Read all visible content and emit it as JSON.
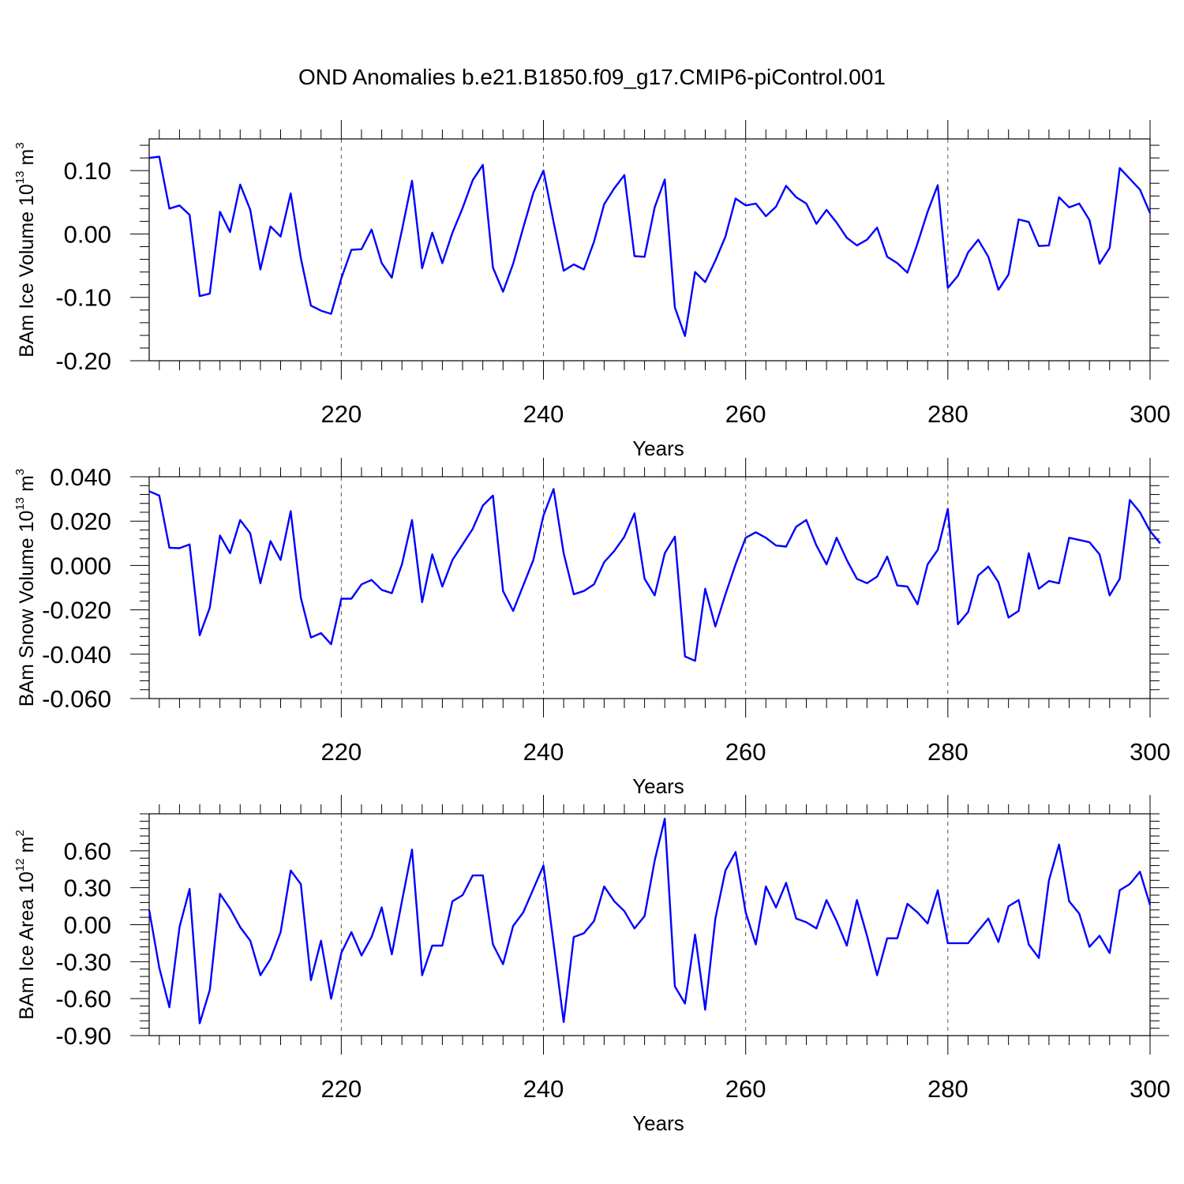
{
  "title": "OND Anomalies b.e21.B1850.f09_g17.CMIP6-piControl.001",
  "line_color": "#0000ff",
  "chart_data": [
    {
      "type": "line",
      "ylabel": "BAm Ice Volume 10",
      "ylabel_exp": "13",
      "ylabel_unit": " m",
      "ylabel_unit_exp": "3",
      "xlabel": "Years",
      "xlim": [
        201,
        300
      ],
      "ylim": [
        -0.2,
        0.15
      ],
      "yticks": [
        -0.2,
        -0.1,
        0.0,
        0.1
      ],
      "ytick_labels": [
        "-0.20",
        "-0.10",
        "0.00",
        "0.10"
      ],
      "xticks": [
        220,
        240,
        260,
        280,
        300
      ],
      "xtick_labels": [
        "220",
        "240",
        "260",
        "280",
        "300"
      ],
      "grid_x": [
        220,
        240,
        260,
        280
      ],
      "x_start": 201,
      "values": [
        0.12,
        0.122,
        0.04,
        0.045,
        0.03,
        -0.098,
        -0.094,
        0.035,
        0.003,
        0.078,
        0.038,
        -0.056,
        0.012,
        -0.004,
        0.064,
        -0.038,
        -0.113,
        -0.121,
        -0.126,
        -0.07,
        -0.025,
        -0.024,
        0.007,
        -0.046,
        -0.069,
        0.006,
        0.084,
        -0.054,
        0.002,
        -0.046,
        0.002,
        0.041,
        0.085,
        0.109,
        -0.053,
        -0.091,
        -0.047,
        0.01,
        0.065,
        0.1,
        0.019,
        -0.058,
        -0.048,
        -0.056,
        -0.012,
        0.047,
        0.072,
        0.093,
        -0.035,
        -0.036,
        0.042,
        0.086,
        -0.116,
        -0.161,
        -0.06,
        -0.076,
        -0.042,
        -0.004,
        0.056,
        0.045,
        0.048,
        0.028,
        0.043,
        0.076,
        0.058,
        0.048,
        0.016,
        0.038,
        0.018,
        -0.006,
        -0.018,
        -0.009,
        0.01,
        -0.036,
        -0.046,
        -0.061,
        -0.015,
        0.035,
        0.077,
        -0.085,
        -0.066,
        -0.029,
        -0.009,
        -0.036,
        -0.088,
        -0.064,
        0.023,
        0.019,
        -0.019,
        -0.018,
        0.058,
        0.042,
        0.048,
        0.022,
        -0.047,
        -0.022,
        0.104,
        0.087,
        0.07,
        0.033
      ]
    },
    {
      "type": "line",
      "ylabel": "BAm Snow Volume 10",
      "ylabel_exp": "13",
      "ylabel_unit": " m",
      "ylabel_unit_exp": "3",
      "xlabel": "Years",
      "xlim": [
        201,
        300
      ],
      "ylim": [
        -0.06,
        0.04
      ],
      "yticks": [
        -0.06,
        -0.04,
        -0.02,
        0.0,
        0.02,
        0.04
      ],
      "ytick_labels": [
        "-0.060",
        "-0.040",
        "-0.020",
        "0.000",
        "0.020",
        "0.040"
      ],
      "xticks": [
        220,
        240,
        260,
        280,
        300
      ],
      "xtick_labels": [
        "220",
        "240",
        "260",
        "280",
        "300"
      ],
      "grid_x": [
        220,
        240,
        260,
        280
      ],
      "x_start": 201,
      "values": [
        0.0335,
        0.0315,
        0.008,
        0.0078,
        0.0095,
        -0.0315,
        -0.019,
        0.0135,
        0.0055,
        0.0205,
        0.0145,
        -0.008,
        0.011,
        0.0025,
        0.0245,
        -0.0145,
        -0.0325,
        -0.0305,
        -0.0355,
        -0.015,
        -0.015,
        -0.0085,
        -0.0065,
        -0.011,
        -0.0125,
        0.0005,
        0.0205,
        -0.0165,
        0.005,
        -0.0095,
        0.0025,
        0.0095,
        0.0165,
        0.027,
        0.0315,
        -0.0115,
        -0.0205,
        -0.009,
        0.0025,
        0.0225,
        0.0345,
        0.0055,
        -0.013,
        -0.0115,
        -0.0085,
        0.0015,
        0.0065,
        0.013,
        0.0235,
        -0.006,
        -0.0135,
        0.0055,
        0.013,
        -0.041,
        -0.043,
        -0.0105,
        -0.0275,
        -0.013,
        0.0005,
        0.0125,
        0.015,
        0.0125,
        0.009,
        0.0085,
        0.0175,
        0.0205,
        0.009,
        0.0005,
        0.0125,
        0.0025,
        -0.006,
        -0.008,
        -0.005,
        0.004,
        -0.009,
        -0.0095,
        -0.0175,
        0.0005,
        0.007,
        0.0255,
        -0.0265,
        -0.021,
        -0.0045,
        -0.0005,
        -0.0075,
        -0.0235,
        -0.0205,
        0.0055,
        -0.0105,
        -0.007,
        -0.008,
        0.0125,
        0.0115,
        0.0105,
        0.005,
        -0.0135,
        -0.006,
        0.0295,
        0.024,
        0.0155,
        0.01
      ]
    },
    {
      "type": "line",
      "ylabel": "BAm Ice Area 10",
      "ylabel_exp": "12",
      "ylabel_unit": " m",
      "ylabel_unit_exp": "2",
      "xlabel": "Years",
      "xlim": [
        201,
        300
      ],
      "ylim": [
        -0.9,
        0.9
      ],
      "yticks": [
        -0.9,
        -0.6,
        -0.3,
        0.0,
        0.3,
        0.6
      ],
      "ytick_labels": [
        "-0.90",
        "-0.60",
        "-0.30",
        "0.00",
        "0.30",
        "0.60"
      ],
      "xticks": [
        220,
        240,
        260,
        280,
        300
      ],
      "xtick_labels": [
        "220",
        "240",
        "260",
        "280",
        "300"
      ],
      "grid_x": [
        220,
        240,
        260,
        280
      ],
      "x_start": 201,
      "values": [
        0.12,
        -0.35,
        -0.67,
        -0.02,
        0.29,
        -0.8,
        -0.53,
        0.25,
        0.13,
        -0.02,
        -0.13,
        -0.41,
        -0.28,
        -0.06,
        0.44,
        0.33,
        -0.45,
        -0.13,
        -0.6,
        -0.23,
        -0.06,
        -0.25,
        -0.1,
        0.14,
        -0.24,
        0.19,
        0.61,
        -0.41,
        -0.17,
        -0.17,
        0.19,
        0.24,
        0.4,
        0.4,
        -0.16,
        -0.32,
        -0.01,
        0.1,
        0.29,
        0.48,
        -0.15,
        -0.79,
        -0.1,
        -0.07,
        0.03,
        0.31,
        0.19,
        0.11,
        -0.03,
        0.07,
        0.52,
        0.86,
        -0.5,
        -0.64,
        -0.08,
        -0.69,
        0.05,
        0.44,
        0.59,
        0.1,
        -0.16,
        0.31,
        0.14,
        0.34,
        0.05,
        0.02,
        -0.03,
        0.2,
        0.03,
        -0.17,
        0.2,
        -0.09,
        -0.41,
        -0.11,
        -0.11,
        0.17,
        0.1,
        0.01,
        0.28,
        -0.15,
        -0.15,
        -0.15,
        -0.05,
        0.05,
        -0.14,
        0.15,
        0.2,
        -0.16,
        -0.27,
        0.36,
        0.65,
        0.19,
        0.09,
        -0.18,
        -0.09,
        -0.23,
        0.28,
        0.33,
        0.43,
        0.16
      ]
    }
  ]
}
